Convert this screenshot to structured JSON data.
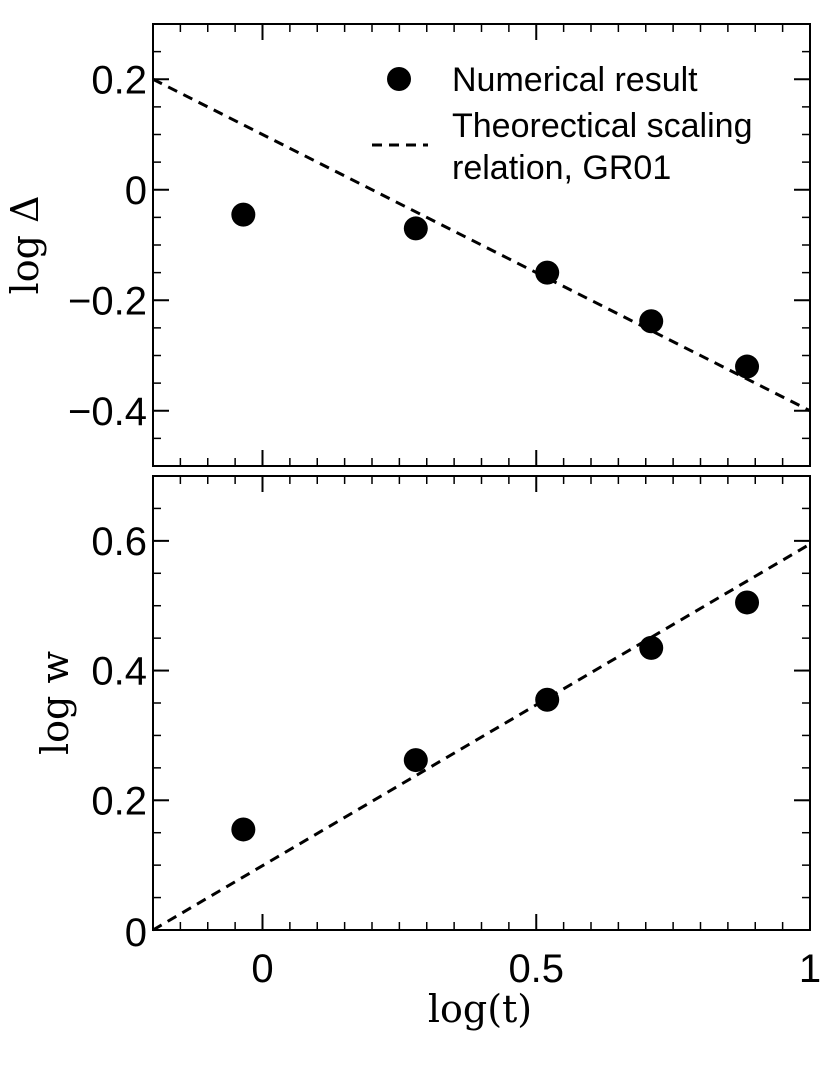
{
  "chart_data": [
    {
      "type": "scatter",
      "ylabel": "log Δ",
      "xlim": [
        -0.2,
        1.0
      ],
      "ylim": [
        -0.5,
        0.3
      ],
      "yticks": [
        0.2,
        0,
        -0.2,
        -0.4
      ],
      "ytick_labels": [
        "0.2",
        "0",
        "−0.2",
        "−0.4"
      ],
      "series": [
        {
          "name": "Numerical result",
          "x": [
            -0.035,
            0.28,
            0.52,
            0.71,
            0.885
          ],
          "y": [
            -0.045,
            -0.07,
            -0.15,
            -0.238,
            -0.32
          ]
        }
      ],
      "lines": [
        {
          "name": "Theorectical scaling relation, GR01",
          "x": [
            -0.2,
            1.0
          ],
          "y": [
            0.2,
            -0.4
          ]
        }
      ],
      "legend": {
        "placement": "top-right",
        "entries": [
          "Numerical result",
          "Theorectical scaling",
          "relation, GR01"
        ]
      }
    },
    {
      "type": "scatter",
      "ylabel": "log w",
      "xlabel": "log(t)",
      "xlim": [
        -0.2,
        1.0
      ],
      "ylim": [
        0,
        0.7
      ],
      "yticks": [
        0,
        0.2,
        0.4,
        0.6
      ],
      "ytick_labels": [
        "0",
        "0.2",
        "0.4",
        "0.6"
      ],
      "xticks": [
        0,
        0.5,
        1
      ],
      "xtick_labels": [
        "0",
        "0.5",
        "1"
      ],
      "series": [
        {
          "name": "Numerical result",
          "x": [
            -0.035,
            0.28,
            0.52,
            0.71,
            0.885
          ],
          "y": [
            0.155,
            0.262,
            0.355,
            0.435,
            0.505
          ]
        }
      ],
      "lines": [
        {
          "name": "Theorectical scaling relation, GR01",
          "x": [
            -0.2,
            1.0
          ],
          "y": [
            0.0,
            0.595
          ]
        }
      ]
    }
  ]
}
